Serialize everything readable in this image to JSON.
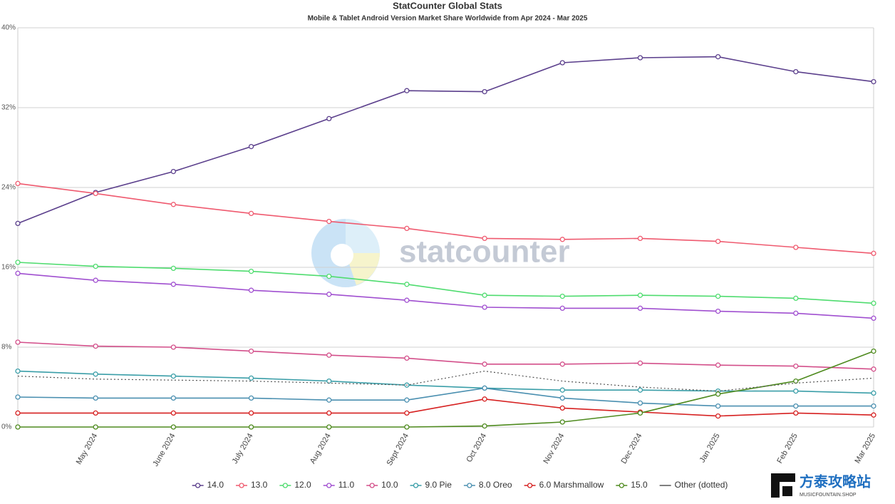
{
  "chart_data": {
    "type": "line",
    "title": "StatCounter Global Stats",
    "subtitle": "Mobile & Tablet Android Version Market Share Worldwide from Apr 2024 - Mar 2025",
    "watermark": "statcounter",
    "categories": [
      null,
      "May 2024",
      "June 2024",
      "July 2024",
      "Aug 2024",
      "Sept 2024",
      "Oct 2024",
      "Nov 2024",
      "Dec 2024",
      "Jan 2025",
      "Feb 2025",
      "Mar 2025"
    ],
    "ylim": [
      0,
      40
    ],
    "yticks": [
      {
        "value": 0,
        "label": "0%"
      },
      {
        "value": 8,
        "label": "8%"
      },
      {
        "value": 16,
        "label": "16%"
      },
      {
        "value": 24,
        "label": "24%"
      },
      {
        "value": 32,
        "label": "32%"
      },
      {
        "value": 40,
        "label": "40%"
      }
    ],
    "grid": true,
    "legend": "bottom",
    "series": [
      {
        "name": "14.0",
        "color": "#5b3f8c",
        "values": [
          20.4,
          23.5,
          25.6,
          28.1,
          30.9,
          33.7,
          33.6,
          36.5,
          37.0,
          37.1,
          35.6,
          34.6
        ]
      },
      {
        "name": "13.0",
        "color": "#ef5a6f",
        "values": [
          24.4,
          23.4,
          22.3,
          21.4,
          20.6,
          19.9,
          18.9,
          18.8,
          18.9,
          18.6,
          18.0,
          17.4
        ]
      },
      {
        "name": "12.0",
        "color": "#4fdc6f",
        "values": [
          16.5,
          16.1,
          15.9,
          15.6,
          15.1,
          14.3,
          13.2,
          13.1,
          13.2,
          13.1,
          12.9,
          12.4
        ]
      },
      {
        "name": "11.0",
        "color": "#a04fd0",
        "values": [
          15.4,
          14.7,
          14.3,
          13.7,
          13.3,
          12.7,
          12.0,
          11.9,
          11.9,
          11.6,
          11.4,
          10.9
        ]
      },
      {
        "name": "10.0",
        "color": "#d34f8a",
        "values": [
          8.5,
          8.1,
          8.0,
          7.6,
          7.2,
          6.9,
          6.3,
          6.3,
          6.4,
          6.2,
          6.1,
          5.8
        ]
      },
      {
        "name": "9.0 Pie",
        "color": "#3a9ea8",
        "values": [
          5.6,
          5.3,
          5.1,
          4.9,
          4.6,
          4.2,
          3.9,
          3.7,
          3.7,
          3.6,
          3.6,
          3.4
        ]
      },
      {
        "name": "8.0 Oreo",
        "color": "#4a8fb0",
        "values": [
          3.0,
          2.9,
          2.9,
          2.9,
          2.7,
          2.7,
          3.9,
          2.9,
          2.4,
          2.1,
          2.1,
          2.1
        ]
      },
      {
        "name": "6.0 Marshmallow",
        "color": "#d62020",
        "values": [
          1.4,
          1.4,
          1.4,
          1.4,
          1.4,
          1.4,
          2.8,
          1.9,
          1.5,
          1.1,
          1.4,
          1.2
        ]
      },
      {
        "name": "15.0",
        "color": "#4e8a1e",
        "values": [
          0,
          0,
          0,
          0,
          0,
          0,
          0.1,
          0.5,
          1.4,
          3.3,
          4.6,
          7.6
        ]
      },
      {
        "name": "Other (dotted)",
        "color": "#555555",
        "dotted": true,
        "values": [
          5.1,
          4.8,
          4.7,
          4.6,
          4.4,
          4.2,
          5.6,
          4.6,
          4.0,
          3.6,
          4.4,
          4.9
        ]
      }
    ]
  },
  "badge": {
    "title": "方泰攻略站",
    "subtitle": "MUSICFOUNTAIN.SHOP"
  }
}
